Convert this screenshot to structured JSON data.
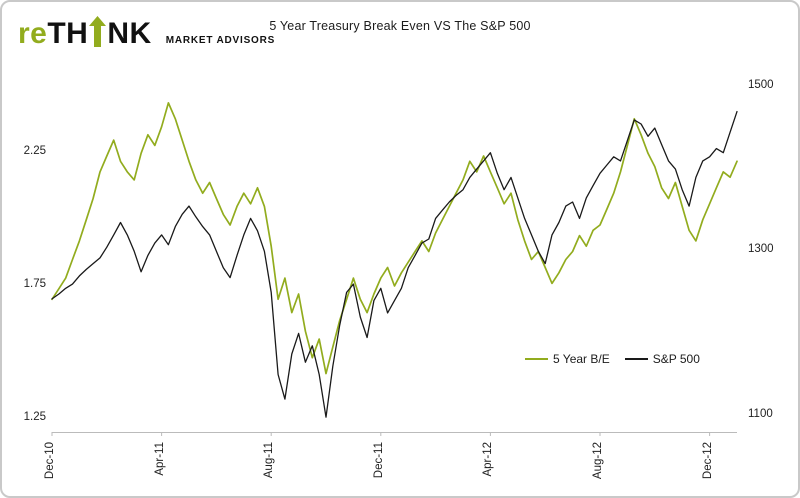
{
  "brand": {
    "logo": {
      "re": "re",
      "th": "TH",
      "nk": "NK"
    },
    "tagline": "MARKET ADVISORS"
  },
  "colors": {
    "accent_green": "#92AC1E",
    "series_black": "#1A1A1A",
    "border_gray": "#C9C9C9"
  },
  "chart_data": {
    "type": "line",
    "title": "5 Year Treasury Break Even VS The S&P 500",
    "x_tick_labels": [
      "Dec-10",
      "Apr-11",
      "Aug-11",
      "Dec-11",
      "Apr-12",
      "Aug-12",
      "Dec-12"
    ],
    "x_tick_indices": [
      0,
      16,
      32,
      48,
      64,
      80,
      96
    ],
    "points_total": 101,
    "grid": "off",
    "left_axis": {
      "range": [
        1.2,
        2.5
      ],
      "ticks": [
        {
          "label": "2.25",
          "value": 2.25
        },
        {
          "label": "1.75",
          "value": 1.75
        },
        {
          "label": "1.25",
          "value": 1.25
        }
      ]
    },
    "right_axis": {
      "range": [
        1080,
        1500
      ],
      "ticks": [
        {
          "label": "1500",
          "value": 1500
        },
        {
          "label": "1300",
          "value": 1300
        },
        {
          "label": "1100",
          "value": 1100
        }
      ]
    },
    "legend": {
      "position": "inside-right",
      "items": [
        {
          "label": "5 Year B/E"
        },
        {
          "label": "S&P 500"
        }
      ]
    },
    "series": [
      {
        "name": "5 Year B/E",
        "axis": "left",
        "color": "#92AC1E",
        "stroke_width": 1.7,
        "values": [
          1.7,
          1.74,
          1.78,
          1.85,
          1.92,
          2.0,
          2.08,
          2.18,
          2.24,
          2.3,
          2.22,
          2.18,
          2.15,
          2.25,
          2.32,
          2.28,
          2.35,
          2.44,
          2.38,
          2.3,
          2.22,
          2.15,
          2.1,
          2.14,
          2.08,
          2.02,
          1.98,
          2.05,
          2.1,
          2.06,
          2.12,
          2.05,
          1.9,
          1.7,
          1.78,
          1.65,
          1.72,
          1.58,
          1.48,
          1.55,
          1.42,
          1.52,
          1.62,
          1.7,
          1.78,
          1.7,
          1.65,
          1.72,
          1.78,
          1.82,
          1.75,
          1.8,
          1.84,
          1.88,
          1.92,
          1.88,
          1.95,
          2.0,
          2.05,
          2.1,
          2.15,
          2.22,
          2.18,
          2.24,
          2.18,
          2.12,
          2.06,
          2.1,
          2.0,
          1.92,
          1.85,
          1.88,
          1.82,
          1.76,
          1.8,
          1.85,
          1.88,
          1.94,
          1.9,
          1.96,
          1.98,
          2.04,
          2.1,
          2.18,
          2.28,
          2.38,
          2.32,
          2.25,
          2.2,
          2.12,
          2.08,
          2.14,
          2.05,
          1.96,
          1.92,
          2.0,
          2.06,
          2.12,
          2.18,
          2.16,
          2.22
        ]
      },
      {
        "name": "S&P 500",
        "axis": "right",
        "color": "#1A1A1A",
        "stroke_width": 1.3,
        "values": [
          1242,
          1248,
          1255,
          1260,
          1270,
          1278,
          1285,
          1292,
          1305,
          1320,
          1335,
          1320,
          1300,
          1275,
          1295,
          1310,
          1320,
          1308,
          1330,
          1345,
          1355,
          1342,
          1330,
          1320,
          1300,
          1280,
          1268,
          1295,
          1320,
          1340,
          1325,
          1300,
          1250,
          1150,
          1120,
          1175,
          1200,
          1165,
          1185,
          1150,
          1098,
          1160,
          1210,
          1250,
          1260,
          1220,
          1195,
          1240,
          1255,
          1225,
          1240,
          1255,
          1280,
          1295,
          1310,
          1315,
          1340,
          1350,
          1360,
          1368,
          1375,
          1390,
          1400,
          1410,
          1420,
          1395,
          1375,
          1390,
          1365,
          1340,
          1320,
          1300,
          1285,
          1320,
          1335,
          1355,
          1360,
          1340,
          1365,
          1380,
          1395,
          1405,
          1415,
          1410,
          1435,
          1460,
          1455,
          1440,
          1450,
          1430,
          1410,
          1400,
          1375,
          1355,
          1390,
          1410,
          1415,
          1425,
          1420,
          1445,
          1470
        ]
      }
    ]
  }
}
